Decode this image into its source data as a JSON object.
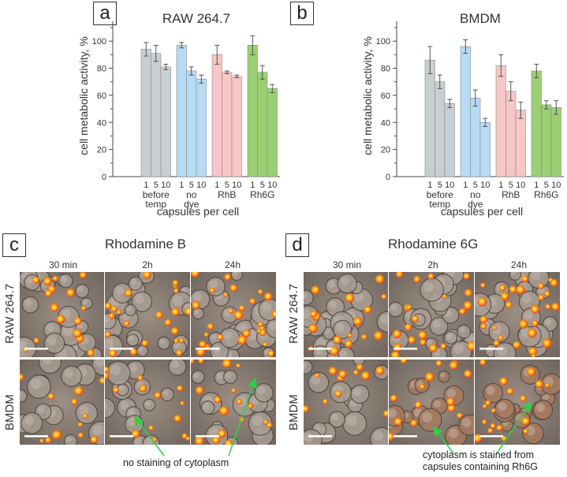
{
  "panels": {
    "a": {
      "label": "a"
    },
    "b": {
      "label": "b"
    },
    "c": {
      "label": "c",
      "title": "Rhodamine B"
    },
    "d": {
      "label": "d",
      "title": "Rhodamine 6G"
    }
  },
  "micro": {
    "col_titles": [
      "30 min",
      "2h",
      "24h"
    ],
    "row_labels": [
      "RAW 264.7",
      "BMDM"
    ],
    "annotation_c": "no staining of cytoplasm",
    "annotation_d_line1": "cytoplasm is stained from",
    "annotation_d_line2": "capsules containing Rh6G"
  },
  "chart_data": [
    {
      "type": "bar",
      "title": "RAW 264.7",
      "ylabel": "cell metabolic activity, %",
      "xlabel": "capsules per cell",
      "ylim": [
        0,
        110
      ],
      "yticks": [
        0,
        20,
        40,
        60,
        80,
        100
      ],
      "bar_labels": [
        "1",
        "5",
        "10"
      ],
      "groups": [
        {
          "name": "before temp",
          "label_lines": [
            "before",
            "temp"
          ],
          "color": "#c8cfd3",
          "values": [
            94,
            91,
            81
          ],
          "errors": [
            5,
            6,
            2
          ]
        },
        {
          "name": "no dye",
          "label_lines": [
            "no",
            "dye"
          ],
          "color": "#b7dbf5",
          "values": [
            97,
            78,
            72
          ],
          "errors": [
            2,
            3,
            3
          ]
        },
        {
          "name": "RhB",
          "label_lines": [
            "RhB"
          ],
          "color": "#f7c6c6",
          "values": [
            90,
            77,
            74
          ],
          "errors": [
            7,
            1,
            1
          ]
        },
        {
          "name": "Rh6G",
          "label_lines": [
            "Rh6G"
          ],
          "color": "#9bcf74",
          "values": [
            97,
            77,
            65
          ],
          "errors": [
            7,
            5,
            3
          ]
        }
      ]
    },
    {
      "type": "bar",
      "title": "BMDM",
      "ylabel": "cell metabolic activity, %",
      "xlabel": "capsules per cell",
      "ylim": [
        0,
        110
      ],
      "yticks": [
        0,
        20,
        40,
        60,
        80,
        100
      ],
      "bar_labels": [
        "1",
        "5",
        "10"
      ],
      "groups": [
        {
          "name": "before temp",
          "label_lines": [
            "before",
            "temp"
          ],
          "color": "#c8cfd3",
          "values": [
            86,
            70,
            54
          ],
          "errors": [
            10,
            5,
            3
          ]
        },
        {
          "name": "no dye",
          "label_lines": [
            "no",
            "dye"
          ],
          "color": "#b7dbf5",
          "values": [
            96,
            58,
            40
          ],
          "errors": [
            5,
            6,
            3
          ]
        },
        {
          "name": "RhB",
          "label_lines": [
            "RhB"
          ],
          "color": "#f7c6c6",
          "values": [
            82,
            63,
            49
          ],
          "errors": [
            8,
            7,
            6
          ]
        },
        {
          "name": "Rh6G",
          "label_lines": [
            "Rh6G"
          ],
          "color": "#9bcf74",
          "values": [
            78,
            53,
            51
          ],
          "errors": [
            5,
            3,
            5
          ]
        }
      ]
    }
  ]
}
